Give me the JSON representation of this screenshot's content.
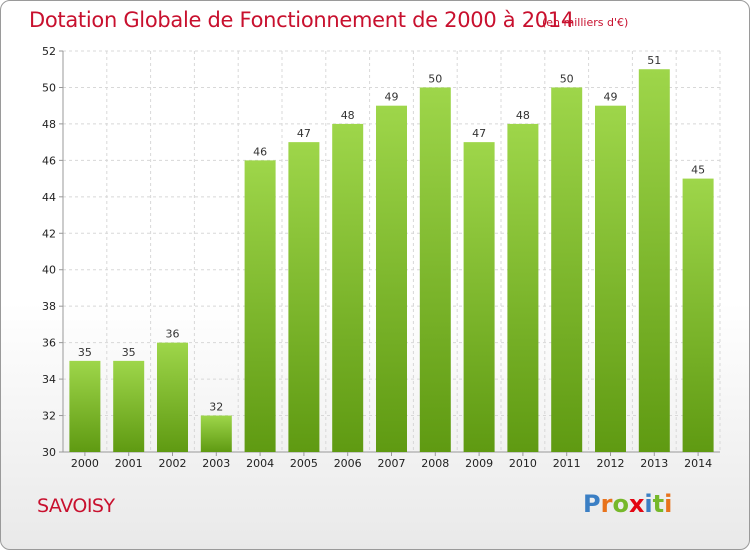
{
  "chart_data": {
    "type": "bar",
    "title": "Dotation Globale de Fonctionnement de 2000 à 2014",
    "unit_label": "(en milliers d'€)",
    "categories": [
      "2000",
      "2001",
      "2002",
      "2003",
      "2004",
      "2005",
      "2006",
      "2007",
      "2008",
      "2009",
      "2010",
      "2011",
      "2012",
      "2013",
      "2014"
    ],
    "values": [
      35,
      35,
      36,
      32,
      46,
      47,
      48,
      49,
      50,
      47,
      48,
      50,
      49,
      51,
      45
    ],
    "xlabel": "",
    "ylabel": "",
    "ylim": [
      30,
      52
    ],
    "yticks": [
      30,
      32,
      34,
      36,
      38,
      40,
      42,
      44,
      46,
      48,
      50,
      52
    ],
    "grid": true,
    "grid_style": "dashed",
    "legend": "none",
    "data_labels": true,
    "colors": {
      "bar_top": "#9ed64a",
      "bar_bottom": "#5f9a12",
      "title": "#c8102e",
      "grid": "#d8d8d8",
      "axis": "#999999"
    }
  },
  "footer": {
    "commune": "SAVOISY",
    "logo_letters": [
      {
        "ch": "P",
        "color": "#3b7fc4"
      },
      {
        "ch": "r",
        "color": "#e8731c"
      },
      {
        "ch": "o",
        "color": "#76b82a"
      },
      {
        "ch": "x",
        "color": "#e30613"
      },
      {
        "ch": "i",
        "color": "#3b7fc4"
      },
      {
        "ch": "t",
        "color": "#76b82a"
      },
      {
        "ch": "i",
        "color": "#e8731c"
      }
    ]
  }
}
